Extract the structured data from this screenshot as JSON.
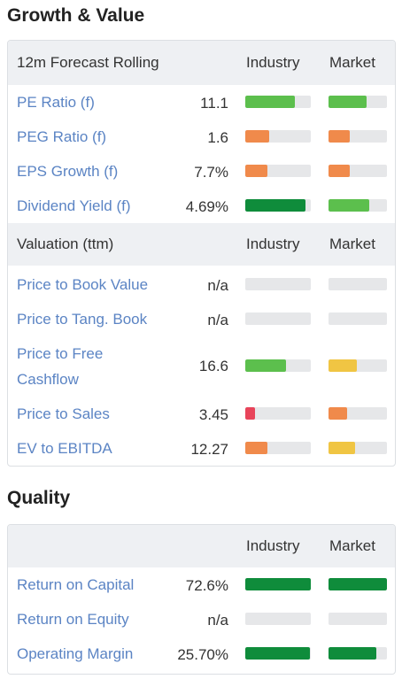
{
  "growth": {
    "title": "Growth & Value",
    "forecast_header": {
      "label": "12m Forecast Rolling",
      "industry": "Industry",
      "market": "Market"
    },
    "forecast_rows": [
      {
        "metric": "PE Ratio (f)",
        "value": "11.1",
        "industry_fill": 0.75,
        "industry_color": "#5cbf4d",
        "market_fill": 0.65,
        "market_color": "#5cbf4d"
      },
      {
        "metric": "PEG Ratio (f)",
        "value": "1.6",
        "industry_fill": 0.36,
        "industry_color": "#f08a4b",
        "market_fill": 0.36,
        "market_color": "#f08a4b"
      },
      {
        "metric": "EPS Growth (f)",
        "value": "7.7%",
        "industry_fill": 0.34,
        "industry_color": "#f08a4b",
        "market_fill": 0.36,
        "market_color": "#f08a4b"
      },
      {
        "metric": "Dividend Yield (f)",
        "value": "4.69%",
        "industry_fill": 0.92,
        "industry_color": "#0f8c3b",
        "market_fill": 0.7,
        "market_color": "#5cbf4d"
      }
    ],
    "valuation_header": {
      "label": "Valuation (ttm)",
      "industry": "Industry",
      "market": "Market"
    },
    "valuation_rows": [
      {
        "metric": "Price to Book Value",
        "value": "n/a",
        "industry_fill": 0,
        "industry_color": "#e6e7e9",
        "market_fill": 0,
        "market_color": "#e6e7e9"
      },
      {
        "metric": "Price to Tang. Book",
        "value": "n/a",
        "industry_fill": 0,
        "industry_color": "#e6e7e9",
        "market_fill": 0,
        "market_color": "#e6e7e9"
      },
      {
        "metric_line1": "Price to Free",
        "metric_line2": "Cashflow",
        "value": "16.6",
        "industry_fill": 0.62,
        "industry_color": "#5cbf4d",
        "market_fill": 0.48,
        "market_color": "#f0c543"
      },
      {
        "metric": "Price to Sales",
        "value": "3.45",
        "industry_fill": 0.15,
        "industry_color": "#e8445a",
        "market_fill": 0.32,
        "market_color": "#f08a4b"
      },
      {
        "metric": "EV to EBITDA",
        "value": "12.27",
        "industry_fill": 0.34,
        "industry_color": "#f08a4b",
        "market_fill": 0.45,
        "market_color": "#f0c543"
      }
    ]
  },
  "quality": {
    "title": "Quality",
    "header": {
      "industry": "Industry",
      "market": "Market"
    },
    "rows": [
      {
        "metric": "Return on Capital",
        "value": "72.6%",
        "industry_fill": 1.0,
        "industry_color": "#0f8c3b",
        "market_fill": 1.0,
        "market_color": "#0f8c3b"
      },
      {
        "metric": "Return on Equity",
        "value": "n/a",
        "industry_fill": 0,
        "industry_color": "#e6e7e9",
        "market_fill": 0,
        "market_color": "#e6e7e9"
      },
      {
        "metric": "Operating Margin",
        "value": "25.70%",
        "industry_fill": 0.98,
        "industry_color": "#0f8c3b",
        "market_fill": 0.82,
        "market_color": "#0f8c3b"
      }
    ]
  }
}
